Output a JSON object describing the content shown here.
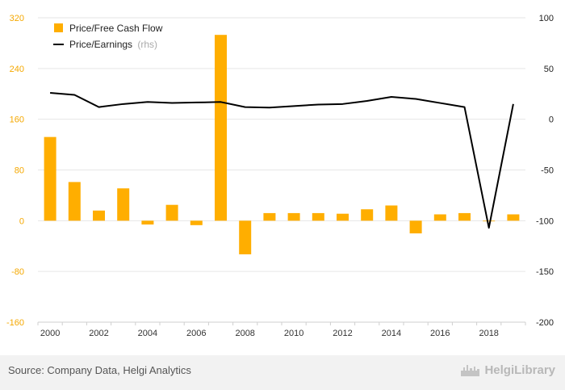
{
  "chart_data": {
    "type": "bar+line",
    "categories": [
      "2000",
      "2001",
      "2002",
      "2003",
      "2004",
      "2005",
      "2006",
      "2007",
      "2008",
      "2009",
      "2010",
      "2011",
      "2012",
      "2013",
      "2014",
      "2015",
      "2016",
      "2017",
      "2018",
      "2019"
    ],
    "x_tick_labels": [
      "2000",
      "2002",
      "2004",
      "2006",
      "2008",
      "2010",
      "2012",
      "2014",
      "2016",
      "2018"
    ],
    "series": [
      {
        "name": "Price/Free Cash Flow",
        "type": "bar",
        "axis": "left",
        "values": [
          132,
          61,
          16,
          51,
          -6,
          25,
          -7,
          293,
          -53,
          12,
          12,
          12,
          11,
          18,
          24,
          -20,
          10,
          12,
          -1,
          10
        ]
      },
      {
        "name": "Price/Earnings",
        "rhs_note": "(rhs)",
        "type": "line",
        "axis": "right",
        "values": [
          26,
          24,
          12,
          15,
          17,
          16,
          16.5,
          17,
          12,
          11.5,
          13,
          14.5,
          15,
          18,
          22,
          20,
          16,
          12,
          -107,
          15
        ]
      }
    ],
    "y_left": {
      "range": [
        -160,
        320
      ],
      "ticks": [
        320,
        240,
        160,
        80,
        0,
        -80,
        -160
      ]
    },
    "y_right": {
      "range": [
        -200,
        100
      ],
      "ticks": [
        100,
        50,
        0,
        -50,
        -100,
        -150,
        -200
      ]
    },
    "legend_position": "top-left"
  },
  "colors": {
    "bar": "#FFAE00",
    "line": "#000000",
    "left_axis_text": "#F5A800",
    "grid": "#e6e6e6",
    "footer_bg": "#f2f2f2"
  },
  "footer": {
    "source": "Source: Company Data, Helgi Analytics",
    "logo_text": "HelgiLibrary"
  }
}
